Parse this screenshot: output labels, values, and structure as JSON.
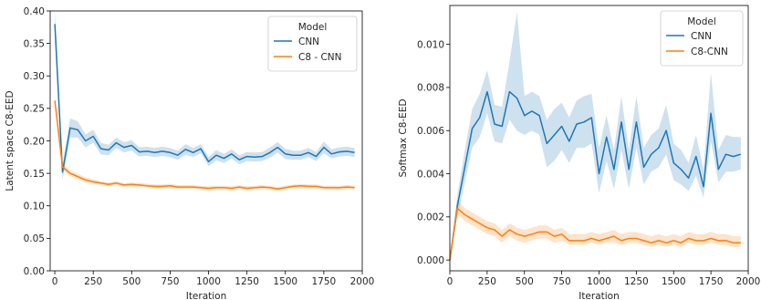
{
  "chart_data": [
    {
      "type": "line",
      "xlabel": "Iteration",
      "ylabel": "Latent space C8-EED",
      "xlim": [
        -30,
        2000
      ],
      "ylim": [
        0,
        0.4
      ],
      "xticks": [
        0,
        250,
        500,
        750,
        1000,
        1250,
        1500,
        1750,
        2000
      ],
      "xtick_labels": [
        "0",
        "250",
        "500",
        "750",
        "1000",
        "1250",
        "1500",
        "1750",
        "2000"
      ],
      "yticks": [
        0,
        0.05,
        0.1,
        0.15,
        0.2,
        0.25,
        0.3,
        0.35,
        0.4
      ],
      "ytick_labels": [
        "0.00",
        "0.05",
        "0.10",
        "0.15",
        "0.20",
        "0.25",
        "0.30",
        "0.35",
        "0.40"
      ],
      "grid": false,
      "legend": {
        "title": "Model",
        "placement": "top-right"
      },
      "series": [
        {
          "name": "CNN",
          "color": "#1f77b4",
          "x": [
            0,
            50,
            100,
            150,
            200,
            250,
            300,
            350,
            400,
            450,
            500,
            550,
            600,
            650,
            700,
            750,
            800,
            850,
            900,
            950,
            1000,
            1050,
            1100,
            1150,
            1200,
            1250,
            1300,
            1350,
            1400,
            1450,
            1500,
            1550,
            1600,
            1650,
            1700,
            1750,
            1800,
            1850,
            1900,
            1950
          ],
          "y": [
            0.38,
            0.152,
            0.22,
            0.217,
            0.2,
            0.207,
            0.188,
            0.186,
            0.197,
            0.19,
            0.193,
            0.183,
            0.184,
            0.182,
            0.184,
            0.182,
            0.178,
            0.187,
            0.182,
            0.188,
            0.168,
            0.178,
            0.173,
            0.18,
            0.171,
            0.176,
            0.175,
            0.176,
            0.182,
            0.19,
            0.18,
            0.178,
            0.178,
            0.182,
            0.176,
            0.19,
            0.18,
            0.183,
            0.184,
            0.182
          ],
          "lower": [
            0.36,
            0.14,
            0.205,
            0.205,
            0.19,
            0.197,
            0.179,
            0.178,
            0.189,
            0.182,
            0.185,
            0.176,
            0.177,
            0.175,
            0.177,
            0.175,
            0.171,
            0.179,
            0.175,
            0.181,
            0.161,
            0.17,
            0.166,
            0.173,
            0.164,
            0.169,
            0.168,
            0.169,
            0.174,
            0.182,
            0.172,
            0.171,
            0.171,
            0.175,
            0.169,
            0.181,
            0.173,
            0.176,
            0.177,
            0.175
          ],
          "upper": [
            0.4,
            0.165,
            0.235,
            0.23,
            0.21,
            0.217,
            0.197,
            0.194,
            0.205,
            0.198,
            0.201,
            0.19,
            0.191,
            0.189,
            0.191,
            0.189,
            0.185,
            0.195,
            0.189,
            0.195,
            0.175,
            0.186,
            0.18,
            0.187,
            0.178,
            0.183,
            0.182,
            0.183,
            0.19,
            0.198,
            0.188,
            0.185,
            0.185,
            0.189,
            0.183,
            0.199,
            0.187,
            0.19,
            0.191,
            0.189
          ]
        },
        {
          "name": "C8 - CNN",
          "color": "#ff7f0e",
          "x": [
            0,
            50,
            100,
            150,
            200,
            250,
            300,
            350,
            400,
            450,
            500,
            550,
            600,
            650,
            700,
            750,
            800,
            850,
            900,
            950,
            1000,
            1050,
            1100,
            1150,
            1200,
            1250,
            1300,
            1350,
            1400,
            1450,
            1500,
            1550,
            1600,
            1650,
            1700,
            1750,
            1800,
            1850,
            1900,
            1950
          ],
          "y": [
            0.262,
            0.16,
            0.15,
            0.145,
            0.14,
            0.137,
            0.135,
            0.133,
            0.135,
            0.132,
            0.133,
            0.132,
            0.131,
            0.13,
            0.13,
            0.131,
            0.129,
            0.129,
            0.129,
            0.128,
            0.127,
            0.128,
            0.128,
            0.127,
            0.129,
            0.127,
            0.128,
            0.129,
            0.128,
            0.126,
            0.128,
            0.13,
            0.131,
            0.13,
            0.13,
            0.128,
            0.128,
            0.128,
            0.129,
            0.128
          ],
          "lower": [
            0.255,
            0.155,
            0.146,
            0.141,
            0.136,
            0.134,
            0.132,
            0.13,
            0.132,
            0.129,
            0.13,
            0.129,
            0.128,
            0.127,
            0.127,
            0.128,
            0.126,
            0.126,
            0.126,
            0.125,
            0.124,
            0.125,
            0.125,
            0.124,
            0.126,
            0.124,
            0.125,
            0.126,
            0.125,
            0.123,
            0.125,
            0.127,
            0.128,
            0.127,
            0.127,
            0.125,
            0.125,
            0.125,
            0.126,
            0.125
          ],
          "upper": [
            0.27,
            0.166,
            0.155,
            0.149,
            0.144,
            0.141,
            0.138,
            0.136,
            0.138,
            0.135,
            0.136,
            0.135,
            0.134,
            0.133,
            0.133,
            0.134,
            0.132,
            0.132,
            0.132,
            0.131,
            0.13,
            0.131,
            0.131,
            0.13,
            0.132,
            0.13,
            0.131,
            0.132,
            0.131,
            0.129,
            0.131,
            0.133,
            0.134,
            0.133,
            0.133,
            0.131,
            0.131,
            0.131,
            0.132,
            0.131
          ]
        }
      ]
    },
    {
      "type": "line",
      "xlabel": "Iteration",
      "ylabel": "Softmax C8-EED",
      "xlim": [
        0,
        2000
      ],
      "ylim": [
        -0.0005,
        0.0118
      ],
      "xticks": [
        0,
        250,
        500,
        750,
        1000,
        1250,
        1500,
        1750,
        2000
      ],
      "xtick_labels": [
        "0",
        "250",
        "500",
        "750",
        "1000",
        "1250",
        "1500",
        "1750",
        "2000"
      ],
      "yticks": [
        0,
        0.002,
        0.004,
        0.006,
        0.008,
        0.01
      ],
      "ytick_labels": [
        "0.000",
        "0.002",
        "0.004",
        "0.006",
        "0.008",
        "0.010"
      ],
      "grid": false,
      "legend": {
        "title": "Model",
        "placement": "top-right"
      },
      "series": [
        {
          "name": "CNN",
          "color": "#1f77b4",
          "x": [
            0,
            50,
            100,
            150,
            200,
            250,
            300,
            350,
            400,
            450,
            500,
            550,
            600,
            650,
            700,
            750,
            800,
            850,
            900,
            950,
            1000,
            1050,
            1100,
            1150,
            1200,
            1250,
            1300,
            1350,
            1400,
            1450,
            1500,
            1550,
            1600,
            1650,
            1700,
            1750,
            1800,
            1850,
            1900,
            1950
          ],
          "y": [
            0.0,
            0.0025,
            0.0043,
            0.0061,
            0.0066,
            0.0078,
            0.0063,
            0.0062,
            0.0078,
            0.0075,
            0.0067,
            0.0069,
            0.0067,
            0.0054,
            0.0058,
            0.0062,
            0.0055,
            0.0063,
            0.0064,
            0.0066,
            0.004,
            0.0057,
            0.0042,
            0.0064,
            0.0042,
            0.0064,
            0.0043,
            0.0049,
            0.0052,
            0.006,
            0.0045,
            0.0042,
            0.0038,
            0.0048,
            0.0034,
            0.0068,
            0.0042,
            0.0049,
            0.0048,
            0.0049
          ],
          "lower": [
            0.0,
            0.002,
            0.0036,
            0.0052,
            0.0057,
            0.0068,
            0.0055,
            0.0054,
            0.0065,
            0.006,
            0.0058,
            0.006,
            0.0058,
            0.0043,
            0.0046,
            0.0051,
            0.0045,
            0.0052,
            0.0052,
            0.0054,
            0.0031,
            0.0046,
            0.0033,
            0.0051,
            0.0033,
            0.0052,
            0.0035,
            0.0041,
            0.0043,
            0.0049,
            0.0037,
            0.0035,
            0.0032,
            0.0039,
            0.0029,
            0.0055,
            0.0036,
            0.0041,
            0.0041,
            0.0042
          ],
          "upper": [
            0.0,
            0.003,
            0.0051,
            0.007,
            0.0077,
            0.0088,
            0.0072,
            0.0071,
            0.0092,
            0.0115,
            0.0076,
            0.0078,
            0.0076,
            0.0065,
            0.007,
            0.0073,
            0.0066,
            0.0074,
            0.0076,
            0.0077,
            0.0052,
            0.0067,
            0.0051,
            0.0076,
            0.0051,
            0.0076,
            0.0052,
            0.0058,
            0.0061,
            0.0072,
            0.0054,
            0.0051,
            0.0045,
            0.0058,
            0.0042,
            0.0087,
            0.0051,
            0.0058,
            0.0057,
            0.0057
          ]
        },
        {
          "name": "C8-CNN",
          "color": "#ff7f0e",
          "x": [
            0,
            50,
            100,
            150,
            200,
            250,
            300,
            350,
            400,
            450,
            500,
            550,
            600,
            650,
            700,
            750,
            800,
            850,
            900,
            950,
            1000,
            1050,
            1100,
            1150,
            1200,
            1250,
            1300,
            1350,
            1400,
            1450,
            1500,
            1550,
            1600,
            1650,
            1700,
            1750,
            1800,
            1850,
            1900,
            1950
          ],
          "y": [
            0.0,
            0.0024,
            0.0021,
            0.0019,
            0.0017,
            0.0015,
            0.0014,
            0.0011,
            0.0014,
            0.0012,
            0.0011,
            0.0012,
            0.0013,
            0.0013,
            0.0011,
            0.0012,
            0.0009,
            0.0009,
            0.0009,
            0.001,
            0.0009,
            0.001,
            0.0011,
            0.0009,
            0.001,
            0.001,
            0.0009,
            0.0008,
            0.0009,
            0.0008,
            0.0009,
            0.0008,
            0.001,
            0.0009,
            0.0009,
            0.001,
            0.0009,
            0.0009,
            0.0008,
            0.0008
          ],
          "lower": [
            0.0,
            0.0021,
            0.0018,
            0.0016,
            0.0014,
            0.0012,
            0.0011,
            0.0008,
            0.0011,
            0.0009,
            0.0008,
            0.0009,
            0.001,
            0.001,
            0.0008,
            0.0009,
            0.0007,
            0.0007,
            0.0007,
            0.0008,
            0.0007,
            0.0008,
            0.0008,
            0.0007,
            0.0008,
            0.0008,
            0.0007,
            0.0006,
            0.0007,
            0.0006,
            0.0007,
            0.0006,
            0.0008,
            0.0007,
            0.0007,
            0.0008,
            0.0007,
            0.0007,
            0.0006,
            0.0006
          ],
          "upper": [
            0.0,
            0.0028,
            0.0024,
            0.0022,
            0.002,
            0.0018,
            0.0017,
            0.0014,
            0.0017,
            0.0015,
            0.0014,
            0.0015,
            0.0016,
            0.0016,
            0.0014,
            0.0015,
            0.0012,
            0.0012,
            0.0012,
            0.0013,
            0.0012,
            0.0013,
            0.0014,
            0.0012,
            0.0013,
            0.0013,
            0.0012,
            0.0011,
            0.0012,
            0.0011,
            0.0012,
            0.0011,
            0.0013,
            0.0012,
            0.0012,
            0.0013,
            0.0012,
            0.0012,
            0.0011,
            0.0011
          ]
        }
      ]
    }
  ]
}
